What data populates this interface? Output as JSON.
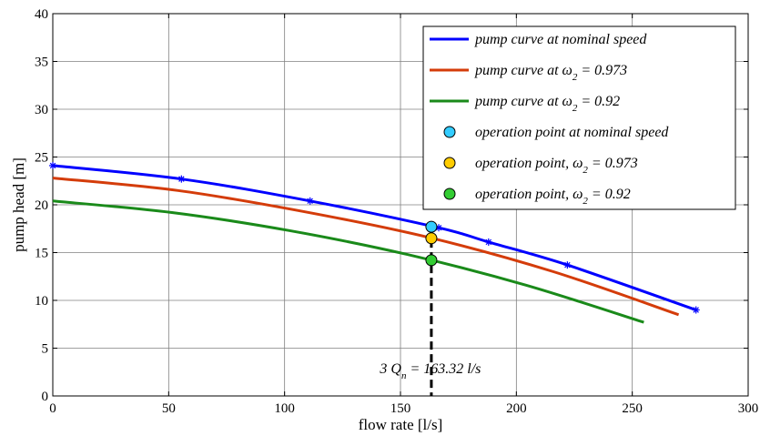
{
  "chart_data": {
    "type": "line",
    "title": "",
    "xlabel": "flow rate [l/s]",
    "ylabel": "pump head [m]",
    "xlim": [
      0,
      300
    ],
    "ylim": [
      0,
      40
    ],
    "xticks": [
      0,
      50,
      100,
      150,
      200,
      250,
      300
    ],
    "yticks": [
      0,
      5,
      10,
      15,
      20,
      25,
      30,
      35,
      40
    ],
    "grid": true,
    "legend_position": "top-right",
    "series": [
      {
        "name": "pump curve at nominal speed",
        "color": "#0000ff",
        "marker": "star",
        "x": [
          0,
          55.5,
          111,
          166.5,
          188,
          222,
          277.5
        ],
        "y": [
          24.1,
          22.7,
          20.4,
          17.6,
          16.1,
          13.7,
          9.0
        ]
      },
      {
        "name_prefix": "pump curve at ",
        "name_symbol": "ω",
        "name_sub": "2",
        "name_suffix": " = 0.973",
        "color": "#d43c0a",
        "marker": "none",
        "x": [
          0,
          54,
          108,
          162,
          216,
          270
        ],
        "y": [
          22.8,
          21.5,
          19.3,
          16.6,
          13.0,
          8.5
        ]
      },
      {
        "name_prefix": "pump curve at ",
        "name_symbol": "ω",
        "name_sub": "2",
        "name_suffix": " = 0.92",
        "color": "#1a8a1a",
        "marker": "none",
        "x": [
          0,
          51,
          102,
          153,
          204,
          255
        ],
        "y": [
          20.4,
          19.2,
          17.3,
          14.8,
          11.6,
          7.7
        ]
      }
    ],
    "points": [
      {
        "name": "operation point at nominal speed",
        "fill": "#33ccff",
        "x": 163.32,
        "y": 17.7
      },
      {
        "name_prefix": "operation point, ",
        "name_symbol": "ω",
        "name_sub": "2",
        "name_suffix": " = 0.973",
        "fill": "#ffcc00",
        "x": 163.32,
        "y": 16.5
      },
      {
        "name_prefix": "operation point, ",
        "name_symbol": "ω",
        "name_sub": "2",
        "name_suffix": " = 0.92",
        "fill": "#33cc33",
        "x": 163.32,
        "y": 14.2
      }
    ],
    "vline": {
      "x": 163.32,
      "style": "dashed",
      "color": "#000000"
    },
    "annotation": {
      "prefix": "3 Q",
      "sub": "n",
      "suffix": " = 163.32 l/s",
      "x": 163.32,
      "y": 2.4
    }
  }
}
